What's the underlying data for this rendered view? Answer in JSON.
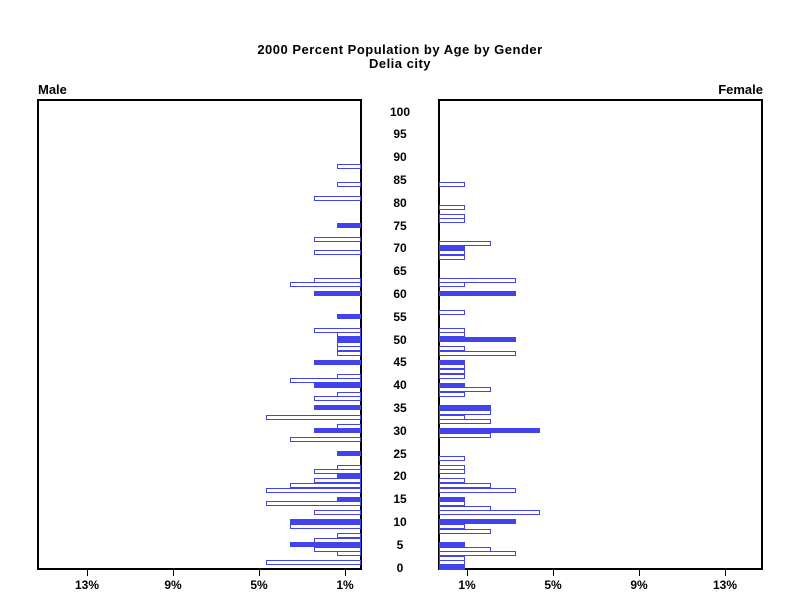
{
  "title": "2000 Percent Population by Age by Gender",
  "subtitle": "Delia city",
  "panels": {
    "left_label": "Male",
    "right_label": "Female"
  },
  "colors": {
    "bar_blue": "#4343ee",
    "axis_black": "#000000",
    "open_bar_fill": "#ffffff"
  },
  "chart_data": {
    "type": "bar",
    "variant": "population-pyramid",
    "title": "2000 Percent Population by Age by Gender",
    "subtitle": "Delia city",
    "legend": "solid bars mark ages that are multiples of 5; outlined bars are other single years of age",
    "unit": "percent of gender population",
    "age_axis": {
      "min": 0,
      "max": 100,
      "tick_step": 5
    },
    "pct_axis": {
      "ticks": [
        1,
        5,
        9,
        13
      ],
      "tick_suffix": "%",
      "max": 15,
      "grid": false
    },
    "series": [
      {
        "name": "Male",
        "side": "left",
        "bars": [
          {
            "age": 88,
            "pct": 1.1,
            "filled": false
          },
          {
            "age": 84,
            "pct": 1.1,
            "filled": false
          },
          {
            "age": 81,
            "pct": 2.2,
            "filled": false
          },
          {
            "age": 75,
            "pct": 1.1,
            "filled": true
          },
          {
            "age": 72,
            "pct": 2.2,
            "filled": false
          },
          {
            "age": 69,
            "pct": 2.2,
            "filled": false
          },
          {
            "age": 63,
            "pct": 2.2,
            "filled": false
          },
          {
            "age": 62,
            "pct": 3.3,
            "filled": false
          },
          {
            "age": 60,
            "pct": 2.2,
            "filled": true
          },
          {
            "age": 55,
            "pct": 1.1,
            "filled": true
          },
          {
            "age": 52,
            "pct": 2.2,
            "filled": false
          },
          {
            "age": 51,
            "pct": 1.1,
            "filled": false
          },
          {
            "age": 50,
            "pct": 1.1,
            "filled": true
          },
          {
            "age": 49,
            "pct": 1.1,
            "filled": false
          },
          {
            "age": 48,
            "pct": 1.1,
            "filled": false
          },
          {
            "age": 47,
            "pct": 1.1,
            "filled": false
          },
          {
            "age": 45,
            "pct": 2.2,
            "filled": true
          },
          {
            "age": 42,
            "pct": 1.1,
            "filled": false
          },
          {
            "age": 41,
            "pct": 3.3,
            "filled": false
          },
          {
            "age": 40,
            "pct": 2.2,
            "filled": true
          },
          {
            "age": 38,
            "pct": 1.1,
            "filled": false
          },
          {
            "age": 37,
            "pct": 2.2,
            "filled": false
          },
          {
            "age": 35,
            "pct": 2.2,
            "filled": true
          },
          {
            "age": 33,
            "pct": 4.4,
            "filled": false
          },
          {
            "age": 31,
            "pct": 1.1,
            "filled": false
          },
          {
            "age": 30,
            "pct": 2.2,
            "filled": true
          },
          {
            "age": 28,
            "pct": 3.3,
            "filled": false
          },
          {
            "age": 25,
            "pct": 1.1,
            "filled": true
          },
          {
            "age": 22,
            "pct": 1.1,
            "filled": false
          },
          {
            "age": 21,
            "pct": 2.2,
            "filled": false
          },
          {
            "age": 20,
            "pct": 1.1,
            "filled": true
          },
          {
            "age": 19,
            "pct": 2.2,
            "filled": false
          },
          {
            "age": 18,
            "pct": 3.3,
            "filled": false
          },
          {
            "age": 17,
            "pct": 4.4,
            "filled": false
          },
          {
            "age": 15,
            "pct": 1.1,
            "filled": true
          },
          {
            "age": 14,
            "pct": 4.4,
            "filled": false
          },
          {
            "age": 12,
            "pct": 2.2,
            "filled": false
          },
          {
            "age": 10,
            "pct": 3.3,
            "filled": true
          },
          {
            "age": 9,
            "pct": 3.3,
            "filled": false
          },
          {
            "age": 7,
            "pct": 1.1,
            "filled": false
          },
          {
            "age": 6,
            "pct": 2.2,
            "filled": false
          },
          {
            "age": 5,
            "pct": 3.3,
            "filled": true
          },
          {
            "age": 4,
            "pct": 2.2,
            "filled": false
          },
          {
            "age": 3,
            "pct": 1.1,
            "filled": false
          },
          {
            "age": 1,
            "pct": 4.4,
            "filled": false
          }
        ]
      },
      {
        "name": "Female",
        "side": "right",
        "bars": [
          {
            "age": 84,
            "pct": 1.2,
            "filled": false
          },
          {
            "age": 79,
            "pct": 1.2,
            "filled": false
          },
          {
            "age": 77,
            "pct": 1.2,
            "filled": false
          },
          {
            "age": 76,
            "pct": 1.2,
            "filled": false
          },
          {
            "age": 71,
            "pct": 2.4,
            "filled": false
          },
          {
            "age": 70,
            "pct": 1.2,
            "filled": true
          },
          {
            "age": 69,
            "pct": 1.2,
            "filled": false
          },
          {
            "age": 68,
            "pct": 1.2,
            "filled": false
          },
          {
            "age": 63,
            "pct": 3.6,
            "filled": false
          },
          {
            "age": 62,
            "pct": 1.2,
            "filled": false
          },
          {
            "age": 60,
            "pct": 3.6,
            "filled": true
          },
          {
            "age": 56,
            "pct": 1.2,
            "filled": false
          },
          {
            "age": 52,
            "pct": 1.2,
            "filled": false
          },
          {
            "age": 51,
            "pct": 1.2,
            "filled": false
          },
          {
            "age": 50,
            "pct": 3.6,
            "filled": true
          },
          {
            "age": 48,
            "pct": 1.2,
            "filled": false
          },
          {
            "age": 47,
            "pct": 3.6,
            "filled": false
          },
          {
            "age": 45,
            "pct": 1.2,
            "filled": true
          },
          {
            "age": 44,
            "pct": 1.2,
            "filled": false
          },
          {
            "age": 43,
            "pct": 1.2,
            "filled": false
          },
          {
            "age": 42,
            "pct": 1.2,
            "filled": false
          },
          {
            "age": 40,
            "pct": 1.2,
            "filled": true
          },
          {
            "age": 39,
            "pct": 2.4,
            "filled": false
          },
          {
            "age": 38,
            "pct": 1.2,
            "filled": false
          },
          {
            "age": 35,
            "pct": 2.4,
            "filled": true
          },
          {
            "age": 34,
            "pct": 2.4,
            "filled": false
          },
          {
            "age": 33,
            "pct": 1.2,
            "filled": false
          },
          {
            "age": 32,
            "pct": 2.4,
            "filled": false
          },
          {
            "age": 30,
            "pct": 4.7,
            "filled": true
          },
          {
            "age": 29,
            "pct": 2.4,
            "filled": false
          },
          {
            "age": 24,
            "pct": 1.2,
            "filled": false
          },
          {
            "age": 22,
            "pct": 1.2,
            "filled": false
          },
          {
            "age": 21,
            "pct": 1.2,
            "filled": false
          },
          {
            "age": 19,
            "pct": 1.2,
            "filled": false
          },
          {
            "age": 18,
            "pct": 2.4,
            "filled": false
          },
          {
            "age": 17,
            "pct": 3.6,
            "filled": false
          },
          {
            "age": 15,
            "pct": 1.2,
            "filled": true
          },
          {
            "age": 14,
            "pct": 1.2,
            "filled": false
          },
          {
            "age": 13,
            "pct": 2.4,
            "filled": false
          },
          {
            "age": 12,
            "pct": 4.7,
            "filled": false
          },
          {
            "age": 10,
            "pct": 3.6,
            "filled": true
          },
          {
            "age": 9,
            "pct": 1.2,
            "filled": false
          },
          {
            "age": 8,
            "pct": 2.4,
            "filled": false
          },
          {
            "age": 5,
            "pct": 1.2,
            "filled": true
          },
          {
            "age": 4,
            "pct": 2.4,
            "filled": false
          },
          {
            "age": 3,
            "pct": 3.6,
            "filled": false
          },
          {
            "age": 2,
            "pct": 1.2,
            "filled": false
          },
          {
            "age": 1,
            "pct": 1.2,
            "filled": false
          },
          {
            "age": 0,
            "pct": 1.2,
            "filled": true
          }
        ]
      }
    ]
  }
}
